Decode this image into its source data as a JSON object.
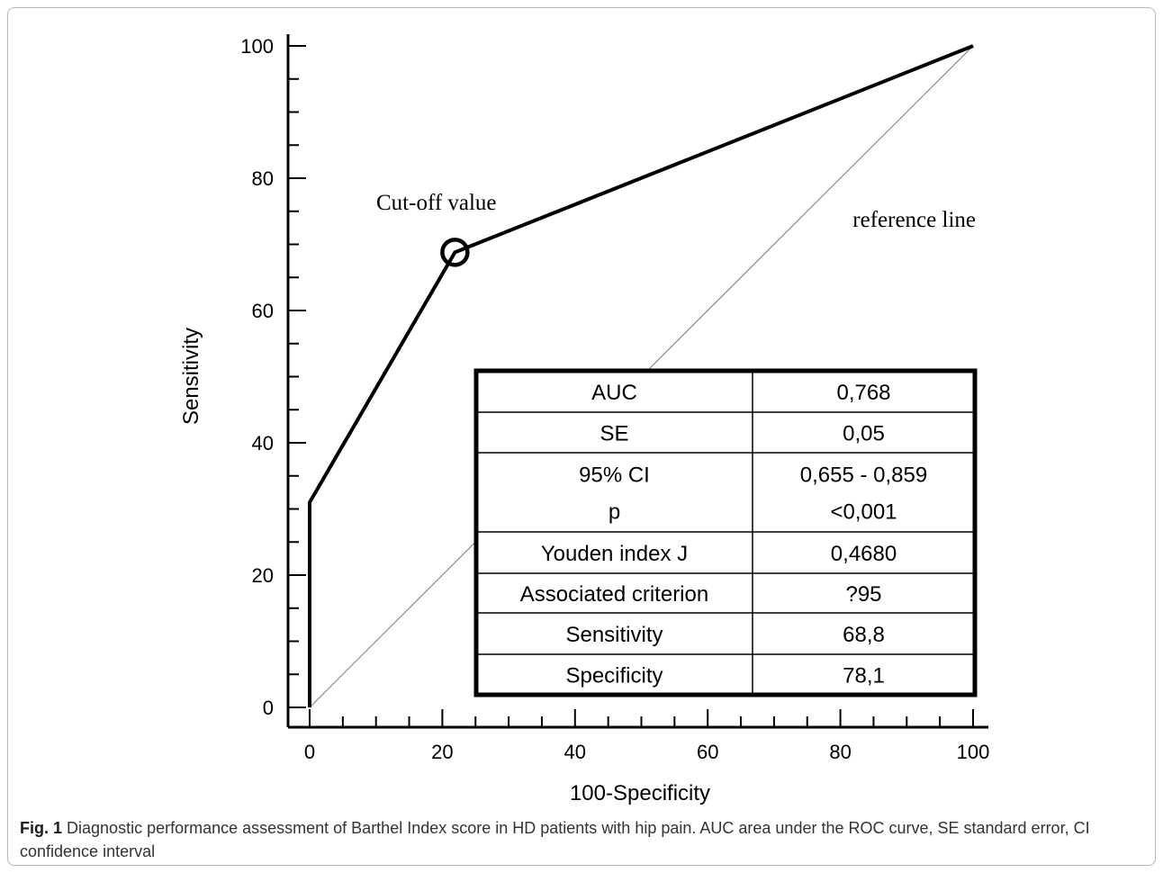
{
  "chart_data": {
    "type": "line",
    "xlabel": "100-Specificity",
    "ylabel": "Sensitivity",
    "xlim": [
      0,
      100
    ],
    "ylim": [
      0,
      100
    ],
    "xticks": [
      0,
      20,
      40,
      60,
      80,
      100
    ],
    "yticks": [
      0,
      20,
      40,
      60,
      80,
      100
    ],
    "series": [
      {
        "x": [
          0,
          0,
          21.9,
          100
        ],
        "y": [
          0,
          31,
          68.8,
          100
        ]
      }
    ],
    "reference_line": {
      "label": "reference line",
      "x": [
        0,
        100
      ],
      "y": [
        0,
        100
      ]
    },
    "cutoff": {
      "label": "Cut-off value",
      "x": 21.9,
      "y": 68.8
    },
    "table": [
      {
        "label": "AUC",
        "value": "0,768"
      },
      {
        "label": "SE",
        "value": "0,05"
      },
      {
        "label": "95% CI\np",
        "value": "0,655 - 0,859\n<0,001"
      },
      {
        "label": "Youden index J",
        "value": "0,4680"
      },
      {
        "label": "Associated criterion",
        "value": "?95"
      },
      {
        "label": "Sensitivity",
        "value": "68,8"
      },
      {
        "label": "Specificity",
        "value": "78,1"
      }
    ]
  },
  "caption": {
    "figure_label": "Fig. 1",
    "text": "Diagnostic performance assessment of Barthel Index score in HD patients with hip pain. AUC area under the ROC curve, SE standard error, CI confidence interval"
  },
  "colors": {
    "curve": "#000000",
    "reference": "#777777",
    "frame": "#b8b8b8"
  }
}
